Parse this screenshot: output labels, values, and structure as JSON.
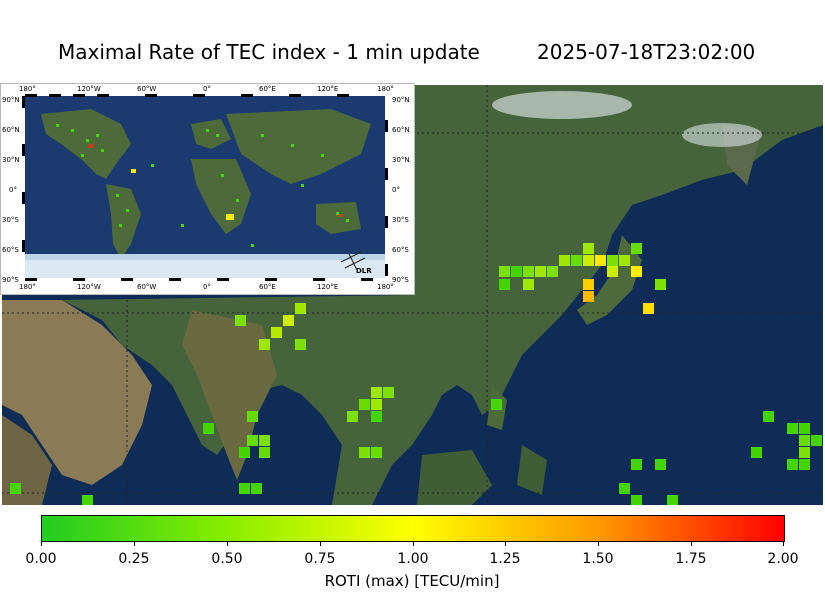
{
  "header": {
    "title": "Maximal Rate of TEC index - 1 min update",
    "timestamp": "2025-07-18T23:02:00"
  },
  "inset": {
    "lon_labels": [
      "180°",
      "120°W",
      "60°W",
      "0°",
      "60°E",
      "120°E",
      "180°"
    ],
    "lat_labels": [
      "90°N",
      "60°N",
      "30°N",
      "0°",
      "30°S",
      "60°S",
      "90°S"
    ],
    "logo_text": "DLR"
  },
  "colorbar": {
    "label": "ROTI (max) [TECU/min]",
    "ticks": [
      "0.00",
      "0.25",
      "0.50",
      "0.75",
      "1.00",
      "1.25",
      "1.50",
      "1.75",
      "2.00"
    ],
    "range": [
      0,
      2
    ],
    "colors": [
      "#22cc22",
      "#88ee00",
      "#ffff00",
      "#ff9900",
      "#ff0000"
    ]
  }
}
